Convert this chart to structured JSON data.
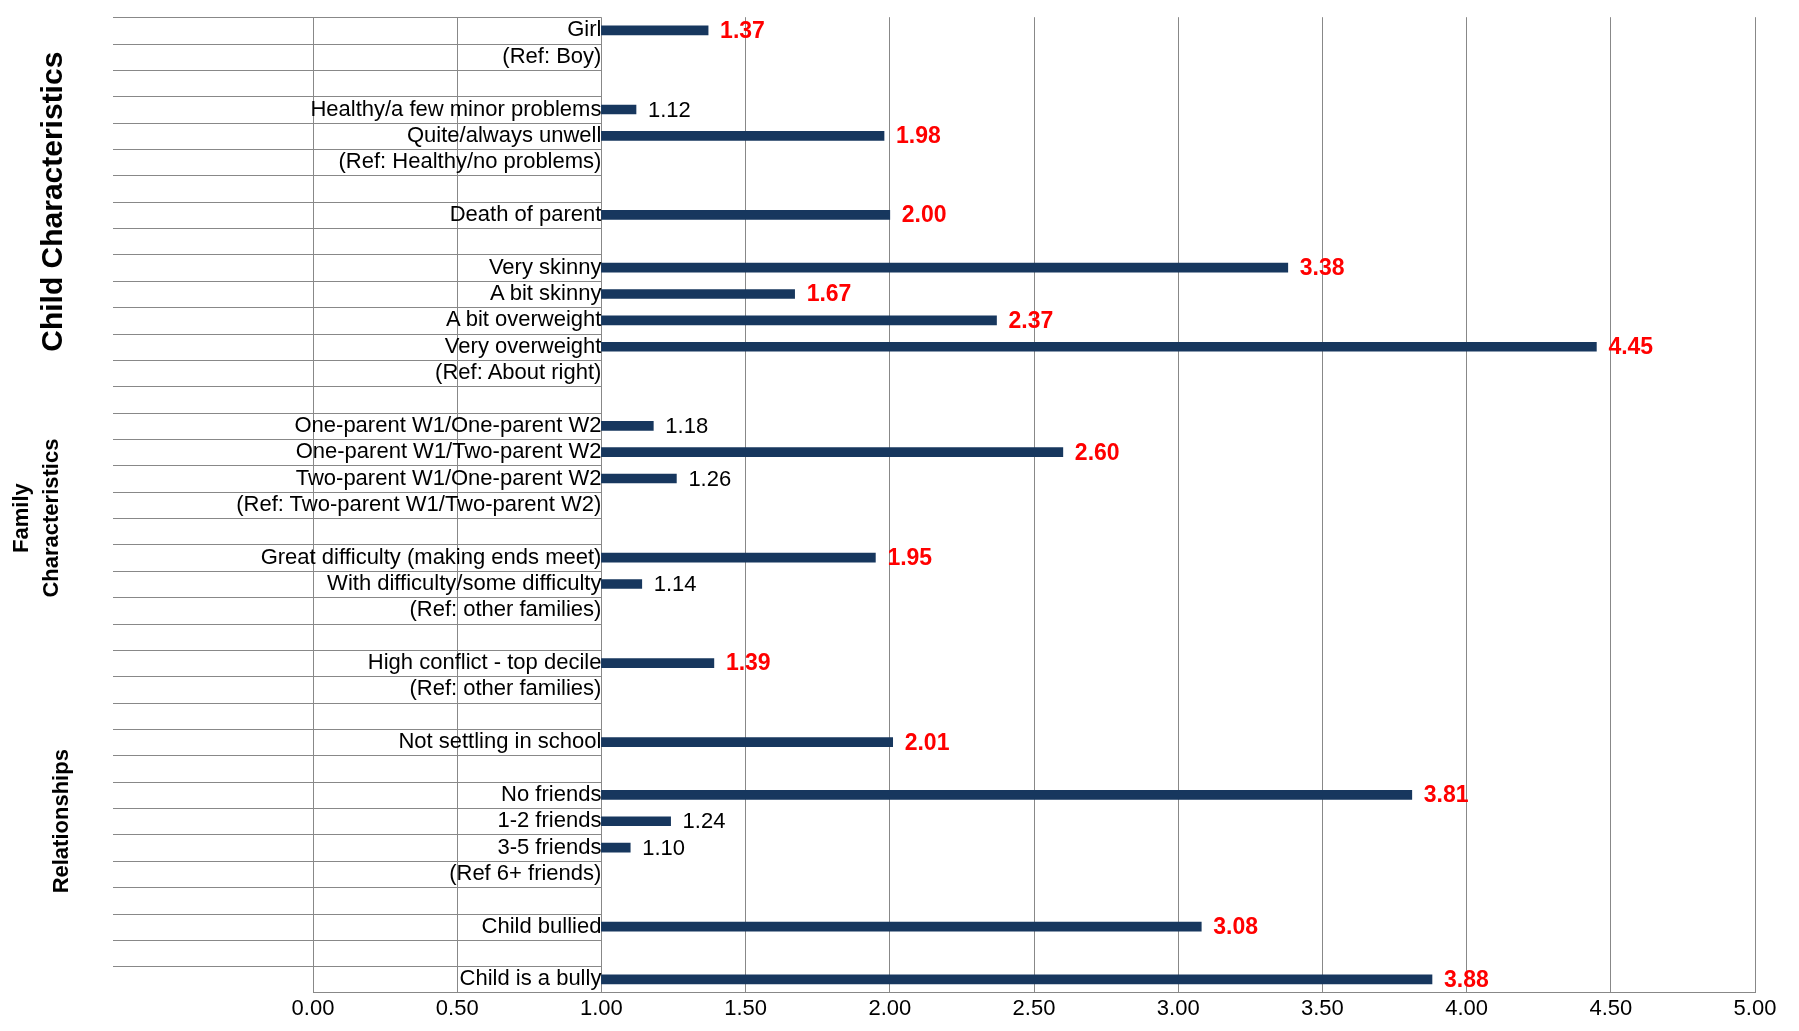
{
  "chart_data": {
    "type": "bar",
    "orientation": "horizontal",
    "categories": [
      "Girl",
      "(Ref: Boy)",
      null,
      "Healthy/a few minor problems",
      "Quite/always unwell",
      "(Ref: Healthy/no problems)",
      null,
      "Death of parent",
      null,
      "Very skinny",
      "A bit skinny",
      "A bit overweight",
      "Very overweight",
      "(Ref: About right)",
      null,
      "One-parent W1/One-parent W2",
      "One-parent W1/Two-parent W2",
      "Two-parent W1/One-parent W2",
      "(Ref: Two-parent W1/Two-parent W2)",
      null,
      "Great difficulty (making ends meet)",
      "With difficulty/some difficulty",
      "(Ref: other families)",
      null,
      "High conflict - top decile",
      "(Ref: other families)",
      null,
      "Not settling in school",
      null,
      "No friends",
      "1-2 friends",
      "3-5 friends",
      "(Ref 6+ friends)",
      null,
      "Child bullied",
      null,
      "Child is a bully"
    ],
    "series": [
      {
        "color": "#17375e",
        "base": [
          1,
          null,
          null,
          null,
          1,
          null,
          null,
          1,
          null,
          1,
          1,
          1,
          1,
          null,
          null,
          null,
          1,
          null,
          null,
          null,
          1,
          null,
          null,
          null,
          1,
          null,
          null,
          1,
          null,
          1,
          null,
          null,
          null,
          null,
          1,
          null,
          1
        ],
        "values": [
          0.37,
          null,
          null,
          null,
          0.98,
          null,
          null,
          1.0,
          null,
          2.38,
          0.67,
          1.37,
          3.45,
          null,
          null,
          null,
          1.6,
          null,
          null,
          null,
          0.95,
          null,
          null,
          null,
          0.39,
          null,
          null,
          1.01,
          null,
          2.81,
          null,
          null,
          null,
          null,
          2.08,
          null,
          2.88
        ],
        "value_labels": [
          "1.37",
          null,
          null,
          null,
          "1.98",
          null,
          null,
          "2.00",
          null,
          "3.38",
          "1.67",
          "2.37",
          "4.45",
          null,
          null,
          null,
          "2.60",
          null,
          null,
          null,
          "1.95",
          null,
          null,
          null,
          "1.39",
          null,
          null,
          "2.01",
          null,
          "3.81",
          null,
          null,
          null,
          null,
          "3.08",
          null,
          "3.88"
        ]
      },
      {
        "color": "#17375e",
        "base": [
          null,
          null,
          null,
          1,
          null,
          null,
          null,
          null,
          null,
          null,
          null,
          null,
          null,
          null,
          null,
          1,
          null,
          1,
          null,
          null,
          null,
          1,
          null,
          null,
          null,
          null,
          null,
          null,
          null,
          null,
          1,
          1,
          null,
          null,
          null,
          null,
          null
        ],
        "values": [
          null,
          null,
          null,
          0.12,
          null,
          null,
          null,
          null,
          null,
          null,
          null,
          null,
          null,
          null,
          null,
          0.18,
          null,
          0.26,
          null,
          null,
          null,
          0.14,
          null,
          null,
          null,
          null,
          null,
          null,
          null,
          null,
          0.24,
          0.1,
          null,
          null,
          null,
          null,
          null
        ],
        "value_labels": [
          null,
          null,
          null,
          "1.12",
          null,
          null,
          null,
          null,
          null,
          null,
          null,
          null,
          null,
          null,
          null,
          "1.18",
          null,
          "1.26",
          null,
          null,
          null,
          "1.14",
          null,
          null,
          null,
          null,
          null,
          null,
          null,
          null,
          "1.24",
          "1.10",
          null,
          null,
          null,
          null,
          null
        ]
      }
    ],
    "xlim": [
      0,
      5
    ],
    "xticks": [
      {
        "value": 0,
        "label": "0.00"
      },
      {
        "value": 0.5,
        "label": "0.50"
      },
      {
        "value": 1,
        "label": "1.00"
      },
      {
        "value": 1.5,
        "label": "1.50"
      },
      {
        "value": 2,
        "label": "2.00"
      },
      {
        "value": 2.5,
        "label": "2.50"
      },
      {
        "value": 3,
        "label": "3.00"
      },
      {
        "value": 3.5,
        "label": "3.50"
      },
      {
        "value": 4,
        "label": "4.00"
      },
      {
        "value": 4.5,
        "label": "4.50"
      },
      {
        "value": 5,
        "label": "5.00"
      }
    ],
    "grid": "x",
    "legend": false,
    "annotations": [
      "Child Characteristics",
      "Family Characteristics",
      "Relationships"
    ]
  }
}
